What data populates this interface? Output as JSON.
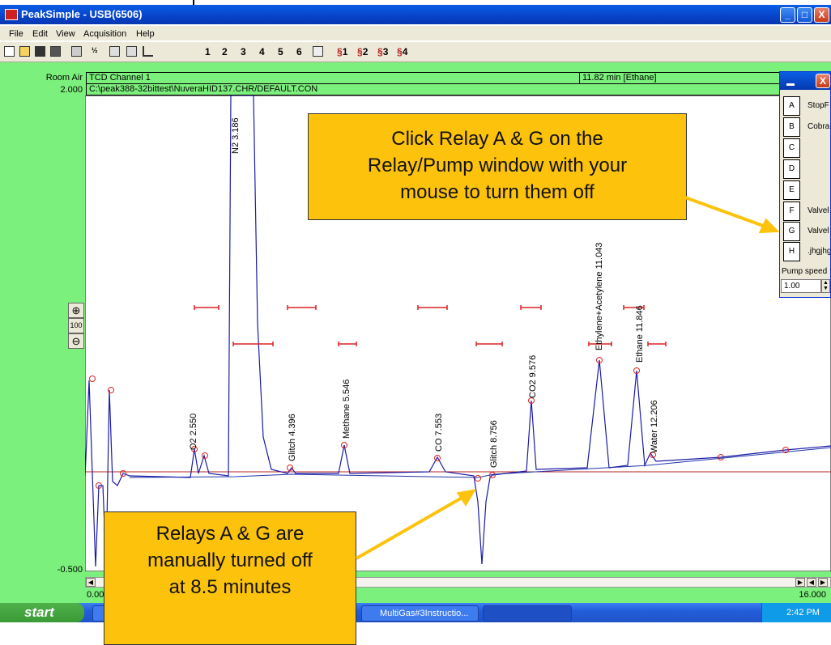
{
  "window": {
    "title": "PeakSimple - USB(6506)"
  },
  "menu": [
    "File",
    "Edit",
    "View",
    "Acquisition",
    "Help"
  ],
  "toolbar": {
    "channels": [
      "1",
      "2",
      "3",
      "4",
      "5",
      "6"
    ],
    "relays": [
      "1",
      "2",
      "3",
      "4"
    ]
  },
  "chart_header": {
    "sample": "Room Air",
    "channel": "TCD Channel 1",
    "cursor": "11.82 min [Ethane]",
    "file": "C:\\peak388-32bittest\\NuveraHID137.CHR/DEFAULT.CON"
  },
  "axis": {
    "y_top": "2.000",
    "y_bottom": "-0.500",
    "x_left": "0.000",
    "x_right": "16.000"
  },
  "zoom": {
    "level": "100"
  },
  "peaks": [
    "O2 2.550",
    "N2 3.186",
    "Glitch 4.396",
    "Methane 5.546",
    "CO 7.553",
    "Glitch 8.756",
    "CO2 9.576",
    "Ethylene+Acetylene 11.043",
    "Ethane 11.846",
    "Water 12.206"
  ],
  "relay_window": {
    "rows": [
      {
        "key": "A",
        "label": "StopF"
      },
      {
        "key": "B",
        "label": "Cobra"
      },
      {
        "key": "C"
      },
      {
        "key": "D"
      },
      {
        "key": "E"
      },
      {
        "key": "F",
        "label": "Valvel"
      },
      {
        "key": "G",
        "label": "Valvel"
      },
      {
        "key": "H",
        "label": ".jhgjhg"
      }
    ],
    "pump_label": "Pump speed",
    "pump_value": "1.00"
  },
  "callouts": [
    {
      "lines": [
        "Click Relay A & G on the",
        "Relay/Pump window with your",
        "mouse to turn them off"
      ]
    },
    {
      "lines": [
        "Relays A & G are",
        "manually turned off",
        "at 8.5 minutes"
      ]
    }
  ],
  "taskbar": {
    "start": "start",
    "items": [
      "MultiGas#3Instructio..."
    ],
    "clock": "2:42 PM"
  }
}
